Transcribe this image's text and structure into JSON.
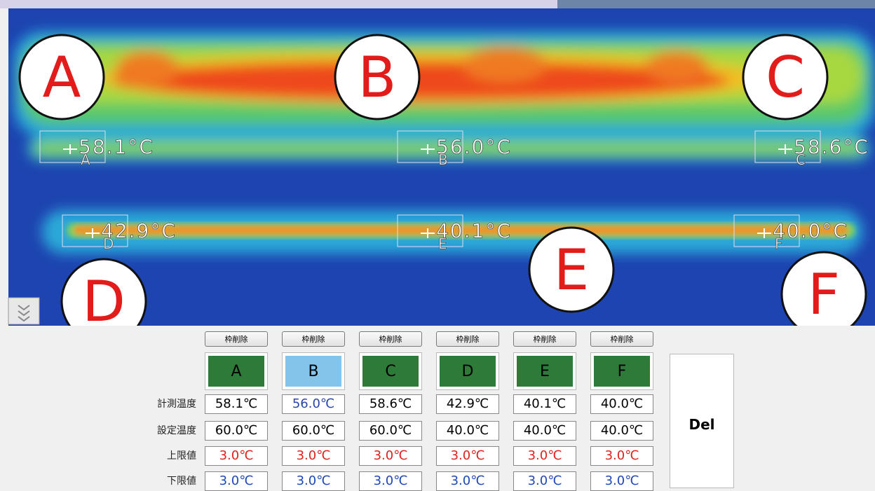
{
  "overlay": {
    "spots": [
      {
        "temp": "58.1°C",
        "letter": "A"
      },
      {
        "temp": "56.0°C",
        "letter": "B"
      },
      {
        "temp": "58.6°C",
        "letter": "C"
      },
      {
        "temp": "42.9°C",
        "letter": "D"
      },
      {
        "temp": "40.1°C",
        "letter": "E"
      },
      {
        "temp": "40.0°C",
        "letter": "F"
      }
    ]
  },
  "callouts": [
    "A",
    "B",
    "C",
    "D",
    "E",
    "F"
  ],
  "table": {
    "delete_buttons": [
      "枠削除",
      "枠削除",
      "枠削除",
      "枠削除",
      "枠削除",
      "枠削除"
    ],
    "columns": [
      "A",
      "B",
      "C",
      "D",
      "E",
      "F"
    ],
    "rows": [
      {
        "label": "計測温度",
        "cells": [
          "58.1℃",
          "56.0℃",
          "58.6℃",
          "42.9℃",
          "40.1℃",
          "40.0℃"
        ]
      },
      {
        "label": "設定温度",
        "cells": [
          "60.0℃",
          "60.0℃",
          "60.0℃",
          "40.0℃",
          "40.0℃",
          "40.0℃"
        ]
      },
      {
        "label": "上限値",
        "cells": [
          "3.0℃",
          "3.0℃",
          "3.0℃",
          "3.0℃",
          "3.0℃",
          "3.0℃"
        ]
      },
      {
        "label": "下限値",
        "cells": [
          "3.0℃",
          "3.0℃",
          "3.0℃",
          "3.0℃",
          "3.0℃",
          "3.0℃"
        ]
      }
    ]
  },
  "del_button": "Del"
}
